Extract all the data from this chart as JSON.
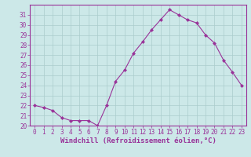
{
  "x": [
    0,
    1,
    2,
    3,
    4,
    5,
    6,
    7,
    8,
    9,
    10,
    11,
    12,
    13,
    14,
    15,
    16,
    17,
    18,
    19,
    20,
    21,
    22,
    23
  ],
  "y": [
    22.0,
    21.8,
    21.5,
    20.8,
    20.5,
    20.5,
    20.5,
    20.0,
    22.0,
    24.4,
    25.5,
    27.2,
    28.3,
    29.5,
    30.5,
    31.5,
    31.0,
    30.5,
    30.2,
    29.0,
    28.2,
    26.5,
    25.3,
    24.0
  ],
  "line_color": "#993399",
  "marker": "D",
  "marker_size": 2.0,
  "bg_color": "#cce8e8",
  "grid_color": "#aacccc",
  "xlabel": "Windchill (Refroidissement éolien,°C)",
  "xlabel_color": "#993399",
  "tick_color": "#993399",
  "spine_color": "#993399",
  "ylim": [
    20,
    32
  ],
  "yticks": [
    20,
    21,
    22,
    23,
    24,
    25,
    26,
    27,
    28,
    29,
    30,
    31
  ],
  "xlim": [
    -0.5,
    23.5
  ],
  "xticks": [
    0,
    1,
    2,
    3,
    4,
    5,
    6,
    7,
    8,
    9,
    10,
    11,
    12,
    13,
    14,
    15,
    16,
    17,
    18,
    19,
    20,
    21,
    22,
    23
  ],
  "tick_fontsize": 5.5,
  "xlabel_fontsize": 6.5,
  "linewidth": 0.8
}
